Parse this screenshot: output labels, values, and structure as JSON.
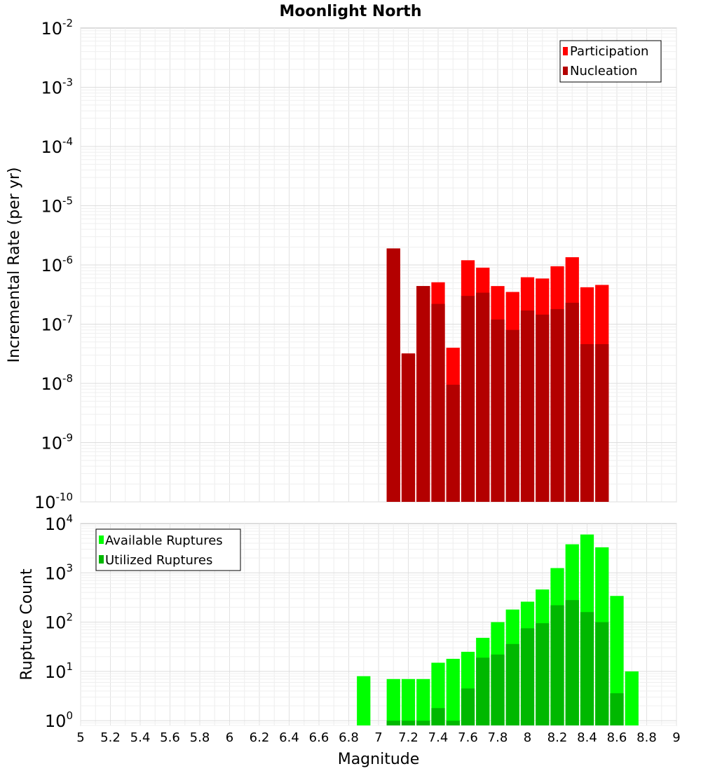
{
  "chart_data": [
    {
      "type": "bar",
      "title": "Moonlight North",
      "xlabel": "",
      "ylabel": "Incremental Rate (per yr)",
      "yscale": "log",
      "ylim": [
        1e-10,
        0.01
      ],
      "xlim": [
        5,
        9
      ],
      "bar_width": 0.1,
      "ytick_base": "10",
      "ytick_exponents": [
        "-10",
        "-9",
        "-8",
        "-7",
        "-6",
        "-5",
        "-4",
        "-3",
        "-2"
      ],
      "grid": true,
      "legend_position": "top-right",
      "series": [
        {
          "name": "Participation",
          "color": "#ff0000",
          "x": [
            7.1,
            7.2,
            7.3,
            7.4,
            7.5,
            7.6,
            7.7,
            7.8,
            7.9,
            8.0,
            8.1,
            8.2,
            8.3,
            8.4,
            8.5
          ],
          "values": [
            1.9e-06,
            3.2e-08,
            4.4e-07,
            5.1e-07,
            4e-08,
            1.2e-06,
            9e-07,
            4.4e-07,
            3.5e-07,
            6.2e-07,
            5.9e-07,
            9.5e-07,
            1.35e-06,
            4.2e-07,
            4.6e-07
          ]
        },
        {
          "name": "Nucleation",
          "color": "#b30000",
          "x": [
            7.1,
            7.2,
            7.3,
            7.4,
            7.5,
            7.6,
            7.7,
            7.8,
            7.9,
            8.0,
            8.1,
            8.2,
            8.3,
            8.4,
            8.5
          ],
          "values": [
            1.9e-06,
            3.2e-08,
            4.4e-07,
            2.2e-07,
            9.5e-09,
            3e-07,
            3.4e-07,
            1.2e-07,
            8e-08,
            1.7e-07,
            1.45e-07,
            1.8e-07,
            2.3e-07,
            4.6e-08,
            4.6e-08
          ]
        }
      ]
    },
    {
      "type": "bar",
      "title": "",
      "xlabel": "Magnitude",
      "ylabel": "Rupture Count",
      "yscale": "log",
      "ylim": [
        0.8,
        10000
      ],
      "xlim": [
        5,
        9
      ],
      "bar_width": 0.1,
      "ytick_base": "10",
      "ytick_exponents": [
        "0",
        "1",
        "2",
        "3",
        "4"
      ],
      "xticks": [
        "5",
        "5.2",
        "5.4",
        "5.6",
        "5.8",
        "6",
        "6.2",
        "6.4",
        "6.6",
        "6.8",
        "7",
        "7.2",
        "7.4",
        "7.6",
        "7.8",
        "8",
        "8.2",
        "8.4",
        "8.6",
        "8.8",
        "9"
      ],
      "grid": true,
      "legend_position": "top-left",
      "series": [
        {
          "name": "Available Ruptures",
          "color": "#00ff00",
          "x": [
            6.9,
            7.1,
            7.2,
            7.3,
            7.4,
            7.5,
            7.6,
            7.7,
            7.8,
            7.9,
            8.0,
            8.1,
            8.2,
            8.3,
            8.4,
            8.5,
            8.6,
            8.7
          ],
          "values": [
            8,
            7,
            7,
            7,
            15,
            18,
            25,
            48,
            100,
            180,
            260,
            460,
            1250,
            3800,
            6000,
            3300,
            340,
            10
          ]
        },
        {
          "name": "Utilized Ruptures",
          "color": "#00b800",
          "x": [
            7.1,
            7.2,
            7.3,
            7.4,
            7.5,
            7.6,
            7.7,
            7.8,
            7.9,
            8.0,
            8.1,
            8.2,
            8.3,
            8.4,
            8.5,
            8.6
          ],
          "values": [
            1,
            1,
            1,
            1.8,
            1,
            4.5,
            19,
            22,
            36,
            75,
            95,
            220,
            280,
            160,
            100,
            3.6
          ]
        }
      ]
    }
  ]
}
